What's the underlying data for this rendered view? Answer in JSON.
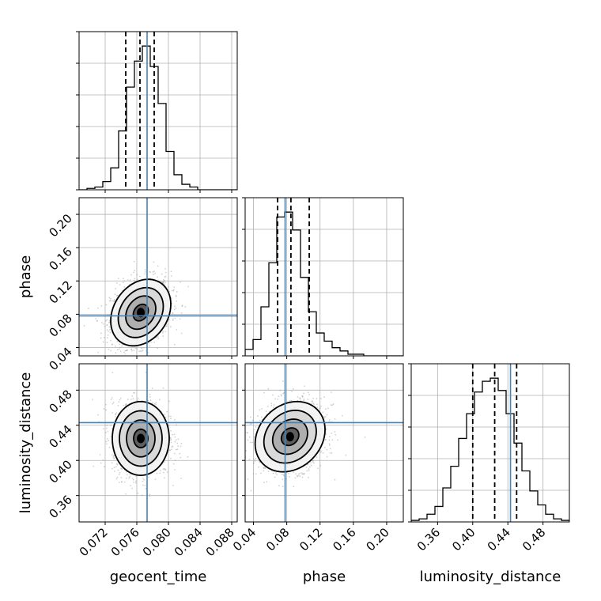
{
  "chart_data": {
    "type": "corner",
    "parameters": [
      "geocent_time",
      "phase",
      "luminosity_distance"
    ],
    "grid": true,
    "colors": {
      "truth": "#4682b4",
      "hist": "#000000",
      "contour": "#000000",
      "grid": "#b0b0b0"
    },
    "truths": {
      "geocent_time": 0.0773,
      "phase": 0.078,
      "luminosity_distance": 0.443
    },
    "ranges": {
      "geocent_time": [
        0.0687,
        0.0887
      ],
      "phase": [
        0.03,
        0.22
      ],
      "luminosity_distance": [
        0.33,
        0.51
      ]
    },
    "ticks": {
      "geocent_time": {
        "values": [
          0.072,
          0.076,
          0.08,
          0.084,
          0.088
        ],
        "labels": [
          "0.072",
          "0.076",
          "0.080",
          "0.084",
          "0.088"
        ]
      },
      "phase": {
        "values": [
          0.04,
          0.08,
          0.12,
          0.16,
          0.2
        ],
        "labels": [
          "0.04",
          "0.08",
          "0.12",
          "0.16",
          "0.20"
        ]
      },
      "luminosity_distance": {
        "values": [
          0.36,
          0.4,
          0.44,
          0.48
        ],
        "labels": [
          "0.36",
          "0.40",
          "0.44",
          "0.48"
        ]
      }
    },
    "quantiles": {
      "geocent_time": [
        0.0746,
        0.0764,
        0.0782
      ],
      "phase": [
        0.069,
        0.085,
        0.107
      ],
      "luminosity_distance": [
        0.4,
        0.425,
        0.45
      ]
    },
    "histograms": {
      "geocent_time": {
        "bins": [
          0.0687,
          0.0697,
          0.0707,
          0.0717,
          0.0727,
          0.0737,
          0.0747,
          0.0757,
          0.0767,
          0.0777,
          0.0787,
          0.0797,
          0.0807,
          0.0817,
          0.0827,
          0.0837,
          0.0847,
          0.0857,
          0.0867,
          0.0877,
          0.0887
        ],
        "counts": [
          0,
          1,
          2,
          6,
          16,
          43,
          75,
          94,
          105,
          90,
          63,
          28,
          11,
          4,
          2,
          0,
          0,
          0,
          0,
          0
        ]
      },
      "phase": {
        "bins": [
          0.03,
          0.0395,
          0.049,
          0.0585,
          0.068,
          0.0775,
          0.087,
          0.0965,
          0.106,
          0.1155,
          0.125,
          0.1345,
          0.144,
          0.1535,
          0.163,
          0.1725,
          0.182,
          0.1915,
          0.201,
          0.2105,
          0.22
        ],
        "counts": [
          4,
          10,
          30,
          57,
          85,
          88,
          77,
          48,
          27,
          14,
          9,
          5,
          3,
          1,
          1,
          0,
          0,
          0,
          0,
          0
        ]
      },
      "luminosity_distance": {
        "bins": [
          0.33,
          0.339,
          0.348,
          0.357,
          0.366,
          0.375,
          0.384,
          0.393,
          0.402,
          0.411,
          0.42,
          0.429,
          0.438,
          0.447,
          0.456,
          0.465,
          0.474,
          0.483,
          0.492,
          0.501,
          0.51
        ],
        "counts": [
          1,
          2,
          5,
          10,
          22,
          36,
          54,
          70,
          84,
          91,
          93,
          85,
          70,
          51,
          33,
          20,
          11,
          5,
          2,
          1
        ]
      }
    },
    "posterior_2d": [
      {
        "x": "geocent_time",
        "y": "phase",
        "mean": [
          0.0765,
          0.082
        ],
        "sd": [
          0.0019,
          0.02
        ],
        "rho": 0.25,
        "contour_sigmas": [
          0.5,
          1.0,
          1.5,
          2.0
        ]
      },
      {
        "x": "geocent_time",
        "y": "luminosity_distance",
        "mean": [
          0.0765,
          0.425
        ],
        "sd": [
          0.0018,
          0.021
        ],
        "rho": 0.0,
        "contour_sigmas": [
          0.5,
          1.0,
          1.5,
          2.0
        ]
      },
      {
        "x": "phase",
        "y": "luminosity_distance",
        "mean": [
          0.084,
          0.427
        ],
        "sd": [
          0.021,
          0.02
        ],
        "rho": 0.2,
        "contour_sigmas": [
          0.5,
          1.0,
          1.5,
          2.0
        ]
      }
    ],
    "xlabels": [
      "geocent_time",
      "phase",
      "luminosity_distance"
    ],
    "ylabels": [
      "",
      "phase",
      "luminosity_distance"
    ]
  }
}
